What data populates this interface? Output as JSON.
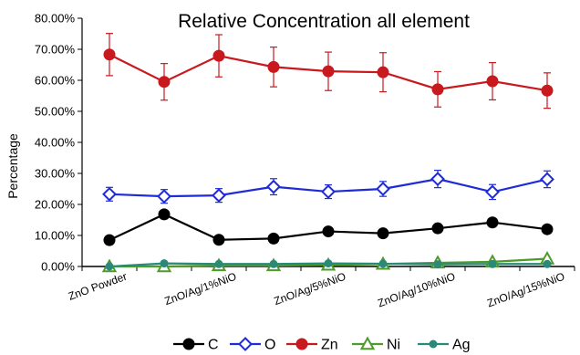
{
  "chart_data": {
    "type": "line",
    "title": "Relative Concentration all element",
    "ylabel": "Percentage",
    "xlabel": "",
    "ylim": [
      0,
      80
    ],
    "y_ticks": [
      "0.00%",
      "10.00%",
      "20.00%",
      "30.00%",
      "40.00%",
      "50.00%",
      "60.00%",
      "70.00%",
      "80.00%"
    ],
    "x_tick_labels": [
      "ZnO Powder",
      "ZnO/Ag/1%NiO",
      "ZnO/Ag/5%NiO",
      "ZnO/Ag/10%NiO",
      "ZnO/Ag/15%NiO"
    ],
    "legend_position": "bottom",
    "grid": false,
    "series": [
      {
        "name": "C",
        "color": "#000000",
        "marker": "circle-filled",
        "values": [
          8.5,
          16.8,
          8.6,
          9.0,
          11.3,
          10.7,
          12.3,
          14.2,
          12.0
        ],
        "error": []
      },
      {
        "name": "O",
        "color": "#1f2bd6",
        "marker": "diamond-open",
        "values": [
          23.3,
          22.6,
          22.9,
          25.7,
          24.1,
          25.0,
          28.2,
          24.0,
          28.1
        ],
        "error": [
          2.2,
          2.2,
          2.2,
          2.6,
          2.2,
          2.4,
          2.8,
          2.4,
          2.7
        ]
      },
      {
        "name": "Zn",
        "color": "#c8191e",
        "marker": "circle-filled",
        "values": [
          68.3,
          59.5,
          67.9,
          64.3,
          62.9,
          62.6,
          57.1,
          59.7,
          56.7
        ],
        "error": [
          6.8,
          5.9,
          6.8,
          6.4,
          6.2,
          6.3,
          5.7,
          6.0,
          5.7
        ]
      },
      {
        "name": "Ni",
        "color": "#4e9a2a",
        "marker": "triangle-open",
        "values": [
          0.0,
          0.0,
          0.3,
          0.3,
          0.5,
          0.8,
          1.2,
          1.5,
          2.5
        ],
        "error": []
      },
      {
        "name": "Ag",
        "color": "#2a8a7a",
        "marker": "circle-filled",
        "values": [
          0.0,
          1.0,
          0.8,
          0.8,
          1.0,
          0.9,
          0.7,
          0.8,
          0.8
        ],
        "error": []
      }
    ]
  }
}
